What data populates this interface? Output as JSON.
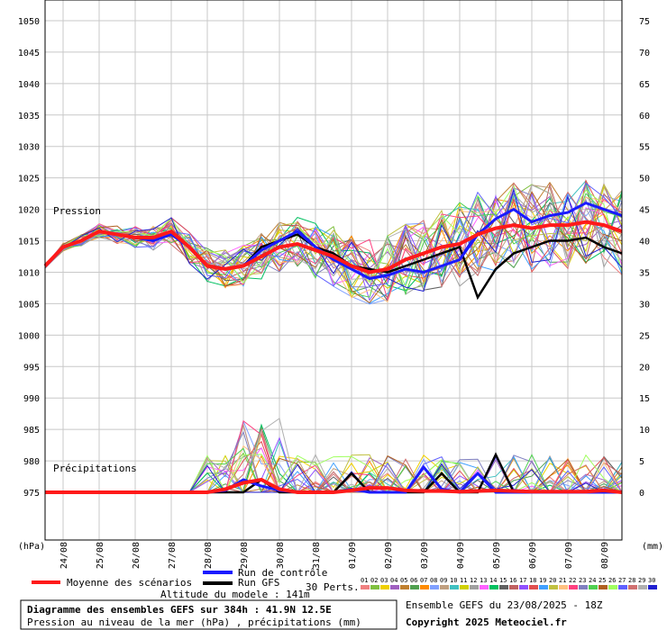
{
  "chart_data": {
    "type": "line",
    "left_axis": {
      "unit_label": "(hPa)",
      "ticks": [
        1050,
        1045,
        1040,
        1035,
        1030,
        1025,
        1020,
        1015,
        1010,
        1005,
        1000,
        995,
        990,
        985,
        980,
        975
      ],
      "range": [
        975,
        1050
      ]
    },
    "right_axis": {
      "unit_label": "(mm)",
      "ticks": [
        75,
        70,
        65,
        60,
        55,
        50,
        45,
        40,
        35,
        30,
        25,
        20,
        15,
        10,
        5,
        0
      ],
      "range": [
        0,
        75
      ]
    },
    "x_ticks": [
      "24/08",
      "25/08",
      "26/08",
      "27/08",
      "28/08",
      "29/08",
      "30/08",
      "31/08",
      "01/09",
      "02/09",
      "03/09",
      "04/09",
      "05/09",
      "06/09",
      "07/09",
      "08/09"
    ],
    "x_range_days": [
      0,
      16
    ],
    "grid": true,
    "panel_labels": {
      "pressure": "Pression",
      "precip": "Précipitations"
    },
    "series": [
      {
        "name": "Moyenne des scénarios",
        "color": "#ff1a1a",
        "x": [
          0,
          0.5,
          1,
          1.5,
          2,
          2.5,
          3,
          3.5,
          4,
          4.5,
          5,
          5.5,
          6,
          6.5,
          7,
          7.5,
          8,
          8.5,
          9,
          9.5,
          10,
          10.5,
          11,
          11.5,
          12,
          12.5,
          13,
          13.5,
          14,
          14.5,
          15,
          15.5,
          16
        ],
        "pressure": [
          1011,
          1014,
          1015,
          1016.5,
          1016,
          1015.5,
          1015.5,
          1016.5,
          1014,
          1011,
          1010.5,
          1011,
          1012.5,
          1014,
          1014.5,
          1013.5,
          1012.5,
          1011,
          1010,
          1010.5,
          1012,
          1013,
          1014,
          1014.5,
          1016,
          1017,
          1017.5,
          1017,
          1017.5,
          1017.5,
          1018,
          1017.5,
          1016.5
        ],
        "precip": [
          0,
          0,
          0,
          0,
          0,
          0,
          0,
          0,
          0,
          0,
          0.5,
          1.5,
          2,
          0.5,
          0,
          0,
          0,
          0.3,
          0.7,
          0.7,
          0.3,
          0.2,
          0.2,
          0.1,
          0.2,
          0.3,
          0.2,
          0.1,
          0.1,
          0.1,
          0.1,
          0.3,
          0
        ]
      },
      {
        "name": "Run de contrôle",
        "color": "#1a1aff",
        "x": [
          0,
          0.5,
          1,
          1.5,
          2,
          2.5,
          3,
          3.5,
          4,
          4.5,
          5,
          5.5,
          6,
          6.5,
          7,
          7.5,
          8,
          8.5,
          9,
          9.5,
          10,
          10.5,
          11,
          11.5,
          12,
          12.5,
          13,
          13.5,
          14,
          14.5,
          15,
          15.5,
          16
        ],
        "pressure": [
          1011,
          1014,
          1015,
          1016.5,
          1016,
          1015.5,
          1015,
          1016,
          1014,
          1011,
          1010.5,
          1011,
          1013.5,
          1015,
          1016.5,
          1014,
          1012,
          1010.5,
          1009,
          1009.5,
          1010.5,
          1010,
          1011,
          1012,
          1016,
          1018.5,
          1020,
          1018,
          1019,
          1019.5,
          1021,
          1020,
          1019
        ],
        "precip": [
          0,
          0,
          0,
          0,
          0,
          0,
          0,
          0,
          0,
          0,
          0.3,
          2,
          1,
          0.3,
          0,
          0,
          0,
          0.5,
          0,
          0,
          0,
          4,
          0.5,
          0,
          3,
          0,
          0,
          0,
          0,
          0,
          0,
          0,
          0
        ]
      },
      {
        "name": "Run GFS",
        "color": "#000000",
        "x": [
          0,
          0.5,
          1,
          1.5,
          2,
          2.5,
          3,
          3.5,
          4,
          4.5,
          5,
          5.5,
          6,
          6.5,
          7,
          7.5,
          8,
          8.5,
          9,
          9.5,
          10,
          10.5,
          11,
          11.5,
          12,
          12.5,
          13,
          13.5,
          14,
          14.5,
          15,
          15.5,
          16
        ],
        "pressure": [
          1011,
          1014,
          1015,
          1016.5,
          1016,
          1015.5,
          1015,
          1016,
          1014,
          1011,
          1010.5,
          1011,
          1014,
          1015,
          1016,
          1014,
          1013,
          1011,
          1010.5,
          1010,
          1011,
          1012,
          1013,
          1014,
          1006,
          1010.5,
          1013,
          1014,
          1015,
          1015,
          1015.5,
          1014,
          1013
        ],
        "precip": [
          0,
          0,
          0,
          0,
          0,
          0,
          0,
          0,
          0,
          0,
          0,
          0,
          2,
          0,
          0,
          0,
          0,
          3,
          0,
          0,
          0,
          0,
          3,
          0,
          0,
          6,
          0,
          0,
          0,
          0,
          0,
          0,
          0
        ]
      }
    ]
  },
  "legend": {
    "mean_label": "Moyenne des scénarios",
    "control_label": "Run de contrôle",
    "gfs_label": "Run GFS",
    "perts_label": "30 Perts.",
    "pert_numbers": [
      "01",
      "02",
      "03",
      "04",
      "05",
      "06",
      "07",
      "08",
      "09",
      "10",
      "11",
      "12",
      "13",
      "14",
      "15",
      "16",
      "17",
      "18",
      "19",
      "20",
      "21",
      "22",
      "23",
      "24",
      "25",
      "26",
      "27",
      "28",
      "29",
      "30"
    ],
    "pert_colors": [
      "#f08080",
      "#80c040",
      "#f0d000",
      "#a060c0",
      "#c08030",
      "#50a050",
      "#ff8c00",
      "#80a0ff",
      "#c0a080",
      "#40c0c0",
      "#d0d000",
      "#a0a0a0",
      "#ff60ff",
      "#00c060",
      "#606060",
      "#c06060",
      "#9050ff",
      "#e05050",
      "#40a0ff",
      "#c0c040",
      "#ffc080",
      "#ff4080",
      "#8080c0",
      "#50d050",
      "#b06020",
      "#a0ff60",
      "#6060ff",
      "#d07070",
      "#b0b0b0",
      "#2020d0"
    ]
  },
  "altitude": "Altitude du modele : 141m",
  "info": {
    "title": "Diagramme des ensembles GEFS sur 384h : 41.9N 12.5E",
    "subtitle": "Pression au niveau de la mer (hPa) , précipitations (mm)",
    "run": "Ensemble GEFS du 23/08/2025 - 18Z",
    "copyright": "Copyright 2025 Meteociel.fr"
  }
}
